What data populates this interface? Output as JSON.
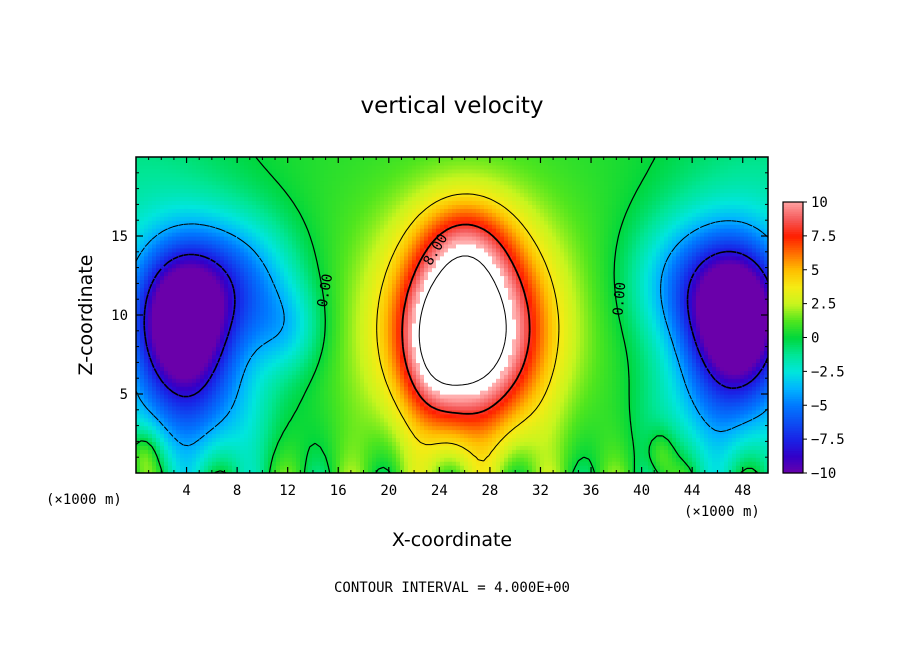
{
  "chart_data": {
    "type": "heatmap",
    "title": "vertical velocity",
    "xlabel": "X-coordinate",
    "ylabel": "Z-coordinate",
    "x_unit_left": "(×1000 m)",
    "x_unit_right": "(×1000 m)",
    "xlim": [
      0,
      50
    ],
    "ylim": [
      0,
      20
    ],
    "x_ticks": [
      4,
      8,
      12,
      16,
      20,
      24,
      28,
      32,
      36,
      40,
      44,
      48
    ],
    "y_ticks": [
      5,
      10,
      15
    ],
    "colorbar": {
      "min": -10,
      "max": 10,
      "ticks": [
        "10",
        "7.5",
        "5",
        "2.5",
        "0",
        "−2.5",
        "−5",
        "−7.5",
        "−10"
      ]
    },
    "contour_labels": [
      {
        "text": "8.00",
        "x": 24.0,
        "y": 14.0,
        "angle": -60
      },
      {
        "text": "0.00",
        "x": 15.3,
        "y": 11.5,
        "angle": -80
      },
      {
        "text": "0.00",
        "x": 38.6,
        "y": 11.0,
        "angle": -85
      }
    ],
    "field_features": [
      {
        "kind": "updraft",
        "x": 26.5,
        "z": 9.0,
        "peak": 12
      },
      {
        "kind": "downdraft",
        "x": 3.5,
        "z": 9.5,
        "peak": -10
      },
      {
        "kind": "downdraft",
        "x": 47.5,
        "z": 9.5,
        "peak": -10
      }
    ],
    "grid": false,
    "legend_position": "right"
  },
  "footer": {
    "contour_interval": "CONTOUR INTERVAL = 4.000E+00"
  }
}
